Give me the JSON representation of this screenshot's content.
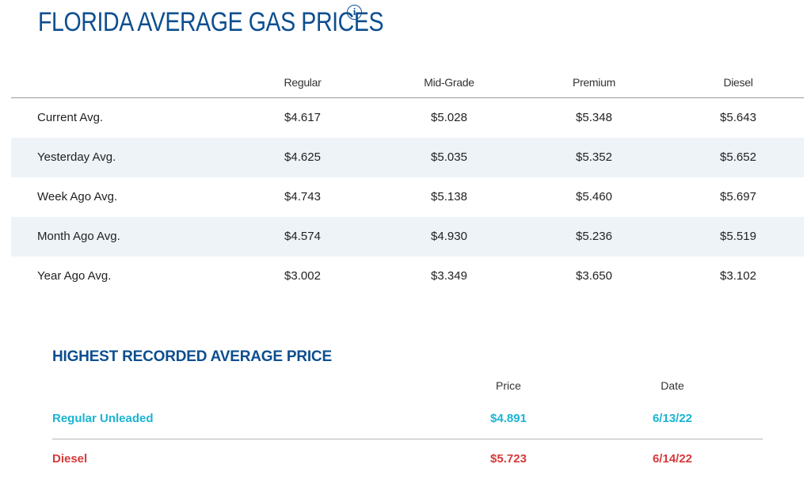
{
  "title": "FLORIDA AVERAGE GAS PRICES",
  "info_icon": "info-icon",
  "average_prices": {
    "columns": [
      "Regular",
      "Mid-Grade",
      "Premium",
      "Diesel"
    ],
    "rows": [
      {
        "label": "Current Avg.",
        "values": [
          "$4.617",
          "$5.028",
          "$5.348",
          "$5.643"
        ]
      },
      {
        "label": "Yesterday Avg.",
        "values": [
          "$4.625",
          "$5.035",
          "$5.352",
          "$5.652"
        ]
      },
      {
        "label": "Week Ago Avg.",
        "values": [
          "$4.743",
          "$5.138",
          "$5.460",
          "$5.697"
        ]
      },
      {
        "label": "Month Ago Avg.",
        "values": [
          "$4.574",
          "$4.930",
          "$5.236",
          "$5.519"
        ]
      },
      {
        "label": "Year Ago Avg.",
        "values": [
          "$3.002",
          "$3.349",
          "$3.650",
          "$3.102"
        ]
      }
    ]
  },
  "highest_recorded": {
    "title": "HIGHEST RECORDED AVERAGE PRICE",
    "columns": [
      "Price",
      "Date"
    ],
    "rows": [
      {
        "label": "Regular Unleaded",
        "price": "$4.891",
        "date": "6/13/22",
        "color": "#1ab4d3"
      },
      {
        "label": "Diesel",
        "price": "$5.723",
        "date": "6/14/22",
        "color": "#d63a3a"
      }
    ]
  },
  "colors": {
    "title": "#0d4e8f",
    "row_shade": "#eef3f8",
    "regular": "#1ab4d3",
    "diesel": "#d63a3a"
  }
}
